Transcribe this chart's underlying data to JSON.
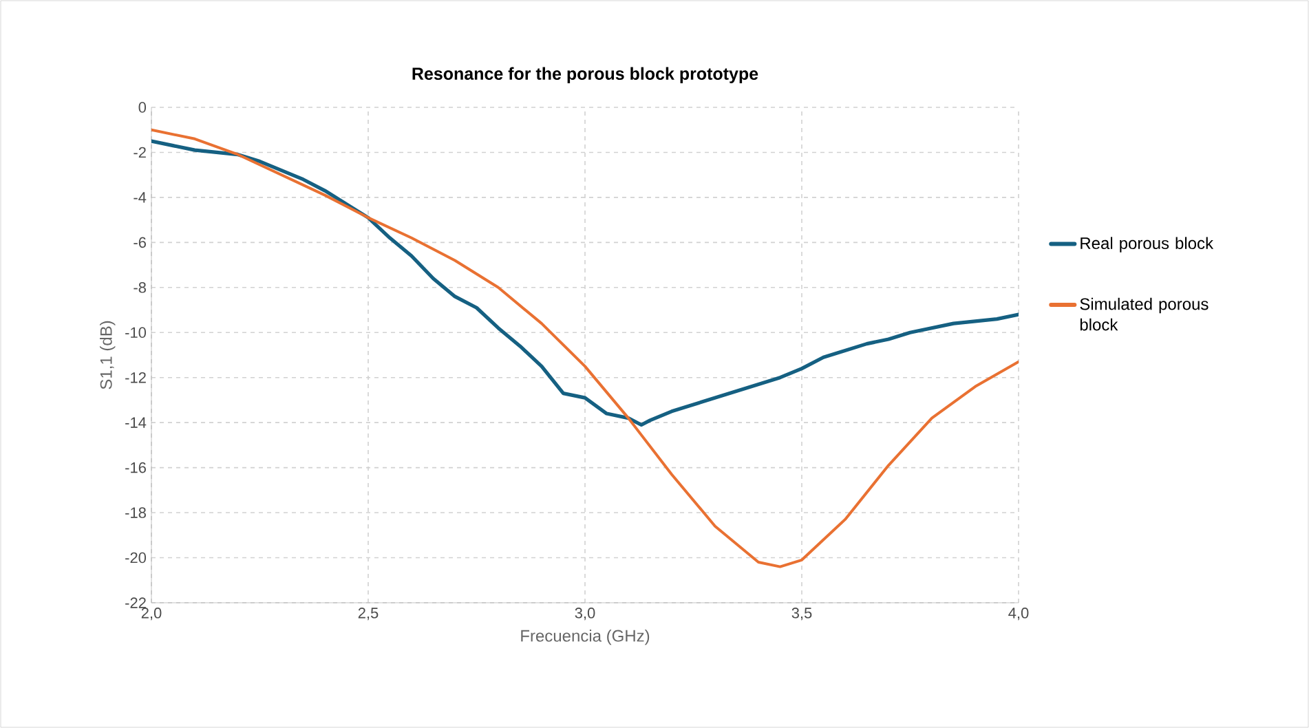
{
  "chart_data": {
    "type": "line",
    "title": "Resonance for the porous block prototype",
    "xlabel": "Frecuencia (GHz)",
    "ylabel": "S1,1 (dB)",
    "xlim": [
      2.0,
      4.0
    ],
    "xticks": [
      {
        "value": 2.0,
        "label": "2,0"
      },
      {
        "value": 2.5,
        "label": "2,5"
      },
      {
        "value": 3.0,
        "label": "3,0"
      },
      {
        "value": 3.5,
        "label": "3,5"
      },
      {
        "value": 4.0,
        "label": "4,0"
      }
    ],
    "ylim": [
      -22,
      0
    ],
    "yticks": [
      -22,
      -20,
      -18,
      -16,
      -14,
      -12,
      -10,
      -8,
      -6,
      -4,
      -2,
      0
    ],
    "grid": true,
    "legend": "right",
    "marker": "none",
    "line_style": "solid",
    "series": [
      {
        "name": "Real porous block",
        "color": "#156082",
        "x": [
          2.0,
          2.05,
          2.1,
          2.15,
          2.2,
          2.25,
          2.3,
          2.35,
          2.4,
          2.45,
          2.5,
          2.55,
          2.6,
          2.65,
          2.7,
          2.75,
          2.8,
          2.85,
          2.9,
          2.95,
          3.0,
          3.05,
          3.1,
          3.13,
          3.15,
          3.2,
          3.25,
          3.3,
          3.35,
          3.4,
          3.45,
          3.5,
          3.55,
          3.6,
          3.65,
          3.7,
          3.75,
          3.8,
          3.85,
          3.9,
          3.95,
          4.0
        ],
        "values": [
          -1.5,
          -1.7,
          -1.9,
          -2.0,
          -2.1,
          -2.4,
          -2.8,
          -3.2,
          -3.7,
          -4.3,
          -4.9,
          -5.8,
          -6.6,
          -7.6,
          -8.4,
          -8.9,
          -9.8,
          -10.6,
          -11.5,
          -12.7,
          -12.9,
          -13.6,
          -13.8,
          -14.1,
          -13.9,
          -13.5,
          -13.2,
          -12.9,
          -12.6,
          -12.3,
          -12.0,
          -11.6,
          -11.1,
          -10.8,
          -10.5,
          -10.3,
          -10.0,
          -9.8,
          -9.6,
          -9.5,
          -9.4,
          -9.2
        ]
      },
      {
        "name": "Simulated porous block",
        "color": "#E97132",
        "x": [
          2.0,
          2.1,
          2.2,
          2.3,
          2.4,
          2.5,
          2.6,
          2.7,
          2.8,
          2.9,
          3.0,
          3.1,
          3.2,
          3.3,
          3.4,
          3.45,
          3.5,
          3.6,
          3.7,
          3.8,
          3.9,
          4.0
        ],
        "values": [
          -1.0,
          -1.4,
          -2.1,
          -3.0,
          -3.9,
          -4.9,
          -5.8,
          -6.8,
          -8.0,
          -9.6,
          -11.5,
          -13.8,
          -16.3,
          -18.6,
          -20.2,
          -20.4,
          -20.1,
          -18.3,
          -15.9,
          -13.8,
          -12.4,
          -11.3
        ]
      }
    ]
  }
}
